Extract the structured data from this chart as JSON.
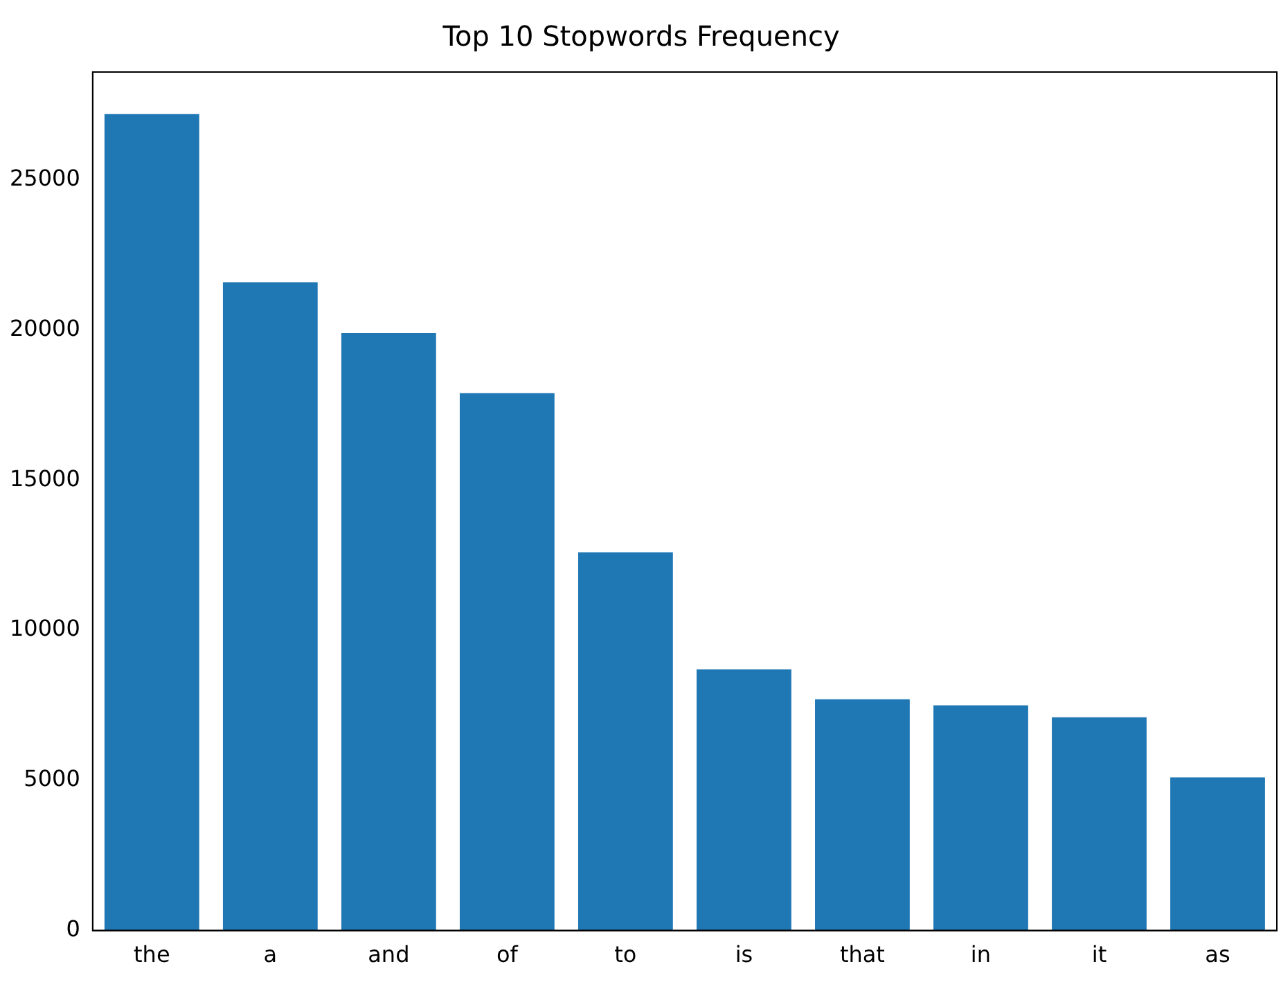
{
  "chart_data": {
    "type": "bar",
    "title": "Top 10 Stopwords Frequency",
    "categories": [
      "the",
      "a",
      "and",
      "of",
      "to",
      "is",
      "that",
      "in",
      "it",
      "as"
    ],
    "values": [
      27200,
      21600,
      19900,
      17900,
      12600,
      8700,
      7700,
      7500,
      7100,
      5100
    ],
    "color": "#1f77b4",
    "ylim": [
      0,
      28600
    ],
    "yticks": [
      0,
      5000,
      10000,
      15000,
      20000,
      25000
    ],
    "grid": false,
    "legend": false
  }
}
